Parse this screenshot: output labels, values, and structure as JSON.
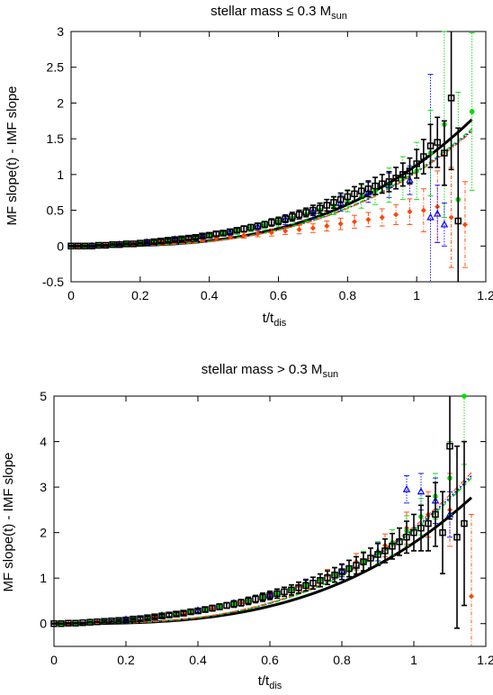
{
  "chart_data": [
    {
      "type": "scatter",
      "title": "stellar mass ≤ 0.3 M",
      "title_sub": "sun",
      "xlabel": "t/t",
      "xlabel_sub": "dis",
      "ylabel": "MF slope(t) - IMF slope",
      "xlim": [
        0,
        1.2
      ],
      "ylim": [
        -0.5,
        3
      ],
      "xticks": [
        "0",
        "0.2",
        "0.4",
        "0.6",
        "0.8",
        "1",
        "1.2"
      ],
      "yticks": [
        "-0.5",
        "0",
        "0.5",
        "1",
        "1.5",
        "2",
        "2.5",
        "3"
      ],
      "grid": false,
      "series": [
        {
          "color": "#000000",
          "marker": "square",
          "style": "solid-errorbars",
          "x": [
            0,
            0.02,
            0.04,
            0.06,
            0.08,
            0.1,
            0.12,
            0.14,
            0.16,
            0.18,
            0.2,
            0.22,
            0.24,
            0.26,
            0.28,
            0.3,
            0.32,
            0.34,
            0.36,
            0.38,
            0.4,
            0.42,
            0.44,
            0.46,
            0.48,
            0.5,
            0.52,
            0.54,
            0.56,
            0.58,
            0.6,
            0.62,
            0.64,
            0.66,
            0.68,
            0.7,
            0.72,
            0.74,
            0.76,
            0.78,
            0.8,
            0.82,
            0.84,
            0.86,
            0.88,
            0.9,
            0.92,
            0.94,
            0.96,
            0.98,
            1.0,
            1.02,
            1.04,
            1.06,
            1.08,
            1.1,
            1.12
          ],
          "y": [
            0,
            0,
            0,
            0,
            0.01,
            0.01,
            0.02,
            0.02,
            0.03,
            0.03,
            0.04,
            0.05,
            0.06,
            0.07,
            0.08,
            0.09,
            0.1,
            0.11,
            0.12,
            0.14,
            0.15,
            0.17,
            0.18,
            0.2,
            0.22,
            0.24,
            0.26,
            0.28,
            0.3,
            0.33,
            0.35,
            0.38,
            0.41,
            0.44,
            0.47,
            0.5,
            0.53,
            0.57,
            0.61,
            0.65,
            0.69,
            0.73,
            0.77,
            0.8,
            0.84,
            0.87,
            0.9,
            0.95,
            1.0,
            1.05,
            1.15,
            1.25,
            1.4,
            1.45,
            1.3,
            2.07,
            0.35
          ],
          "err": [
            0.01,
            0.01,
            0.01,
            0.01,
            0.01,
            0.01,
            0.01,
            0.01,
            0.01,
            0.01,
            0.01,
            0.01,
            0.02,
            0.02,
            0.02,
            0.02,
            0.02,
            0.02,
            0.02,
            0.02,
            0.03,
            0.03,
            0.03,
            0.03,
            0.03,
            0.04,
            0.04,
            0.04,
            0.04,
            0.05,
            0.05,
            0.05,
            0.06,
            0.06,
            0.06,
            0.07,
            0.07,
            0.08,
            0.08,
            0.09,
            0.09,
            0.1,
            0.1,
            0.11,
            0.12,
            0.13,
            0.14,
            0.15,
            0.16,
            0.18,
            0.2,
            0.24,
            0.3,
            0.35,
            0.45,
            1.0,
            1.3
          ]
        },
        {
          "color": "#00dd00",
          "marker": "circle",
          "style": "dotted-errorbars",
          "x": [
            0.04,
            0.08,
            0.12,
            0.16,
            0.2,
            0.24,
            0.28,
            0.32,
            0.36,
            0.4,
            0.44,
            0.48,
            0.52,
            0.56,
            0.6,
            0.64,
            0.68,
            0.72,
            0.76,
            0.8,
            0.84,
            0.88,
            0.92,
            0.96,
            1.0,
            1.04,
            1.08,
            1.12,
            1.16
          ],
          "y": [
            0,
            0.01,
            0.02,
            0.03,
            0.04,
            0.06,
            0.08,
            0.1,
            0.12,
            0.15,
            0.18,
            0.21,
            0.25,
            0.29,
            0.34,
            0.39,
            0.44,
            0.5,
            0.56,
            0.62,
            0.69,
            0.77,
            0.85,
            0.95,
            1.05,
            1.3,
            1.7,
            0.65,
            1.88
          ],
          "err": [
            0.01,
            0.01,
            0.01,
            0.02,
            0.02,
            0.02,
            0.03,
            0.03,
            0.03,
            0.04,
            0.04,
            0.05,
            0.05,
            0.06,
            0.07,
            0.08,
            0.09,
            0.1,
            0.12,
            0.14,
            0.16,
            0.19,
            0.24,
            0.3,
            0.4,
            0.6,
            1.3,
            1.5,
            1.1
          ]
        },
        {
          "color": "#0000ff",
          "marker": "triangle",
          "style": "dotted-errorbars",
          "x": [
            0.06,
            0.14,
            0.22,
            0.3,
            0.38,
            0.46,
            0.54,
            0.62,
            0.7,
            0.78,
            0.86,
            0.92,
            0.98,
            1.04,
            1.06,
            1.08
          ],
          "y": [
            0,
            0.02,
            0.05,
            0.09,
            0.13,
            0.19,
            0.27,
            0.37,
            0.48,
            0.6,
            0.75,
            0.85,
            0.92,
            0.4,
            0.45,
            0.3
          ],
          "err": [
            0.01,
            0.01,
            0.02,
            0.02,
            0.03,
            0.04,
            0.05,
            0.07,
            0.09,
            0.11,
            0.14,
            0.17,
            0.2,
            2.0,
            0.4,
            0.3
          ]
        },
        {
          "color": "#ff4400",
          "marker": "diamond",
          "style": "dashdot-errorbars",
          "x": [
            0.02,
            0.06,
            0.1,
            0.14,
            0.18,
            0.22,
            0.26,
            0.3,
            0.34,
            0.38,
            0.42,
            0.46,
            0.5,
            0.54,
            0.58,
            0.62,
            0.66,
            0.7,
            0.74,
            0.78,
            0.82,
            0.86,
            0.9,
            0.94,
            0.98,
            1.02,
            1.06,
            1.1,
            1.14
          ],
          "y": [
            0,
            0,
            0.01,
            0.02,
            0.03,
            0.04,
            0.05,
            0.06,
            0.08,
            0.1,
            0.11,
            0.13,
            0.15,
            0.17,
            0.19,
            0.21,
            0.23,
            0.25,
            0.28,
            0.31,
            0.34,
            0.37,
            0.4,
            0.44,
            0.48,
            0.5,
            0.55,
            0.4,
            0.3
          ],
          "err": [
            0.01,
            0.01,
            0.01,
            0.01,
            0.01,
            0.02,
            0.02,
            0.02,
            0.02,
            0.03,
            0.03,
            0.03,
            0.04,
            0.04,
            0.05,
            0.05,
            0.06,
            0.06,
            0.07,
            0.08,
            0.09,
            0.1,
            0.12,
            0.14,
            0.18,
            0.3,
            0.5,
            0.7,
            0.6
          ]
        }
      ],
      "fits": [
        {
          "color": "#000000",
          "width": 3,
          "dash": "",
          "x_end": 1.16,
          "y_end": 1.77,
          "power": 3
        },
        {
          "color": "#0000ff",
          "width": 1.5,
          "dash": "2,2",
          "x_end": 1.16,
          "y_end": 1.62,
          "power": 3
        },
        {
          "color": "#00dd00",
          "width": 1.5,
          "dash": "5,3",
          "x_end": 1.16,
          "y_end": 1.64,
          "power": 3
        },
        {
          "color": "#ff4400",
          "width": 1.2,
          "dash": "6,2,1,2",
          "x_end": 1.16,
          "y_end": 1.6,
          "power": 3
        }
      ]
    },
    {
      "type": "scatter",
      "title": "stellar mass > 0.3 M",
      "title_sub": "sun",
      "xlabel": "t/t",
      "xlabel_sub": "dis",
      "ylabel": "MF slope(t) - IMF slope",
      "xlim": [
        0,
        1.2
      ],
      "ylim": [
        -0.5,
        5
      ],
      "xticks": [
        "0",
        "0.2",
        "0.4",
        "0.6",
        "0.8",
        "1",
        "1.2"
      ],
      "yticks": [
        "0",
        "1",
        "2",
        "3",
        "4",
        "5"
      ],
      "grid": false,
      "series": [
        {
          "color": "#000000",
          "marker": "square",
          "style": "solid-errorbars",
          "x": [
            0,
            0.02,
            0.04,
            0.06,
            0.08,
            0.1,
            0.12,
            0.14,
            0.16,
            0.18,
            0.2,
            0.22,
            0.24,
            0.26,
            0.28,
            0.3,
            0.32,
            0.34,
            0.36,
            0.38,
            0.4,
            0.42,
            0.44,
            0.46,
            0.48,
            0.5,
            0.52,
            0.54,
            0.56,
            0.58,
            0.6,
            0.62,
            0.64,
            0.66,
            0.68,
            0.7,
            0.72,
            0.74,
            0.76,
            0.78,
            0.8,
            0.82,
            0.84,
            0.86,
            0.88,
            0.9,
            0.92,
            0.94,
            0.96,
            0.98,
            1.0,
            1.02,
            1.04,
            1.06,
            1.08,
            1.1,
            1.12,
            1.14
          ],
          "y": [
            0,
            0,
            0.01,
            0.01,
            0.02,
            0.03,
            0.04,
            0.05,
            0.06,
            0.07,
            0.08,
            0.1,
            0.11,
            0.13,
            0.15,
            0.17,
            0.19,
            0.21,
            0.23,
            0.26,
            0.28,
            0.31,
            0.34,
            0.37,
            0.4,
            0.43,
            0.46,
            0.5,
            0.54,
            0.58,
            0.62,
            0.66,
            0.7,
            0.74,
            0.79,
            0.84,
            0.89,
            0.95,
            1.01,
            1.07,
            1.14,
            1.21,
            1.28,
            1.36,
            1.44,
            1.52,
            1.6,
            1.7,
            1.8,
            1.9,
            2.0,
            2.1,
            2.2,
            2.4,
            2.0,
            3.9,
            1.9,
            2.2
          ],
          "err": [
            0.01,
            0.01,
            0.01,
            0.01,
            0.01,
            0.01,
            0.01,
            0.02,
            0.02,
            0.02,
            0.02,
            0.02,
            0.03,
            0.03,
            0.03,
            0.03,
            0.04,
            0.04,
            0.04,
            0.05,
            0.05,
            0.05,
            0.06,
            0.06,
            0.06,
            0.07,
            0.07,
            0.08,
            0.08,
            0.09,
            0.09,
            0.1,
            0.1,
            0.11,
            0.12,
            0.12,
            0.13,
            0.14,
            0.15,
            0.16,
            0.17,
            0.18,
            0.19,
            0.2,
            0.22,
            0.24,
            0.26,
            0.28,
            0.3,
            0.35,
            0.4,
            0.5,
            0.6,
            0.7,
            0.9,
            1.6,
            2.0,
            1.8
          ]
        },
        {
          "color": "#00dd00",
          "marker": "circle",
          "style": "dotted-errorbars",
          "x": [
            0.02,
            0.06,
            0.1,
            0.14,
            0.18,
            0.22,
            0.26,
            0.3,
            0.34,
            0.38,
            0.42,
            0.46,
            0.5,
            0.54,
            0.58,
            0.62,
            0.66,
            0.7,
            0.74,
            0.78,
            0.82,
            0.86,
            0.9,
            0.94,
            0.98,
            1.02,
            1.06,
            1.1,
            1.14
          ],
          "y": [
            0,
            0.01,
            0.03,
            0.05,
            0.07,
            0.1,
            0.13,
            0.17,
            0.21,
            0.26,
            0.31,
            0.37,
            0.43,
            0.5,
            0.58,
            0.66,
            0.75,
            0.85,
            0.96,
            1.08,
            1.22,
            1.38,
            1.56,
            1.78,
            2.04,
            2.35,
            2.8,
            3.2,
            5.0
          ],
          "err": [
            0.01,
            0.01,
            0.02,
            0.02,
            0.03,
            0.03,
            0.04,
            0.04,
            0.05,
            0.05,
            0.06,
            0.07,
            0.07,
            0.08,
            0.09,
            0.1,
            0.11,
            0.12,
            0.14,
            0.16,
            0.18,
            0.21,
            0.24,
            0.28,
            0.33,
            0.4,
            0.5,
            0.8,
            1.5
          ]
        },
        {
          "color": "#0000ff",
          "marker": "triangle",
          "style": "dotted-errorbars",
          "x": [
            0.1,
            0.2,
            0.3,
            0.4,
            0.5,
            0.6,
            0.7,
            0.8,
            0.9,
            0.98,
            1.02,
            1.06,
            1.1
          ],
          "y": [
            0.03,
            0.09,
            0.18,
            0.29,
            0.45,
            0.64,
            0.88,
            1.16,
            1.58,
            2.95,
            2.9,
            2.7,
            2.4
          ],
          "err": [
            0.01,
            0.02,
            0.03,
            0.04,
            0.06,
            0.08,
            0.1,
            0.13,
            0.2,
            0.3,
            0.4,
            0.5,
            0.5
          ]
        },
        {
          "color": "#ff4400",
          "marker": "diamond",
          "style": "dashdot-errorbars",
          "x": [
            0.04,
            0.12,
            0.2,
            0.28,
            0.36,
            0.44,
            0.52,
            0.6,
            0.68,
            0.76,
            0.84,
            0.92,
            0.98,
            1.04,
            1.1,
            1.16
          ],
          "y": [
            0.01,
            0.04,
            0.08,
            0.14,
            0.22,
            0.32,
            0.46,
            0.62,
            0.82,
            1.06,
            1.36,
            1.72,
            2.1,
            2.4,
            2.5,
            0.6
          ],
          "err": [
            0.01,
            0.01,
            0.02,
            0.03,
            0.04,
            0.05,
            0.06,
            0.08,
            0.1,
            0.13,
            0.18,
            0.25,
            0.35,
            0.5,
            0.8,
            1.8
          ]
        }
      ],
      "fits": [
        {
          "color": "#000000",
          "width": 3,
          "dash": "",
          "x_end": 1.16,
          "y_end": 2.77,
          "power": 3
        },
        {
          "color": "#0000ff",
          "width": 1.5,
          "dash": "2,2",
          "x_end": 1.16,
          "y_end": 3.25,
          "power": 3
        },
        {
          "color": "#00dd00",
          "width": 1.5,
          "dash": "5,3",
          "x_end": 1.16,
          "y_end": 3.2,
          "power": 3
        },
        {
          "color": "#ff4400",
          "width": 1.2,
          "dash": "6,2,1,2",
          "x_end": 1.16,
          "y_end": 3.32,
          "power": 3
        }
      ]
    }
  ]
}
